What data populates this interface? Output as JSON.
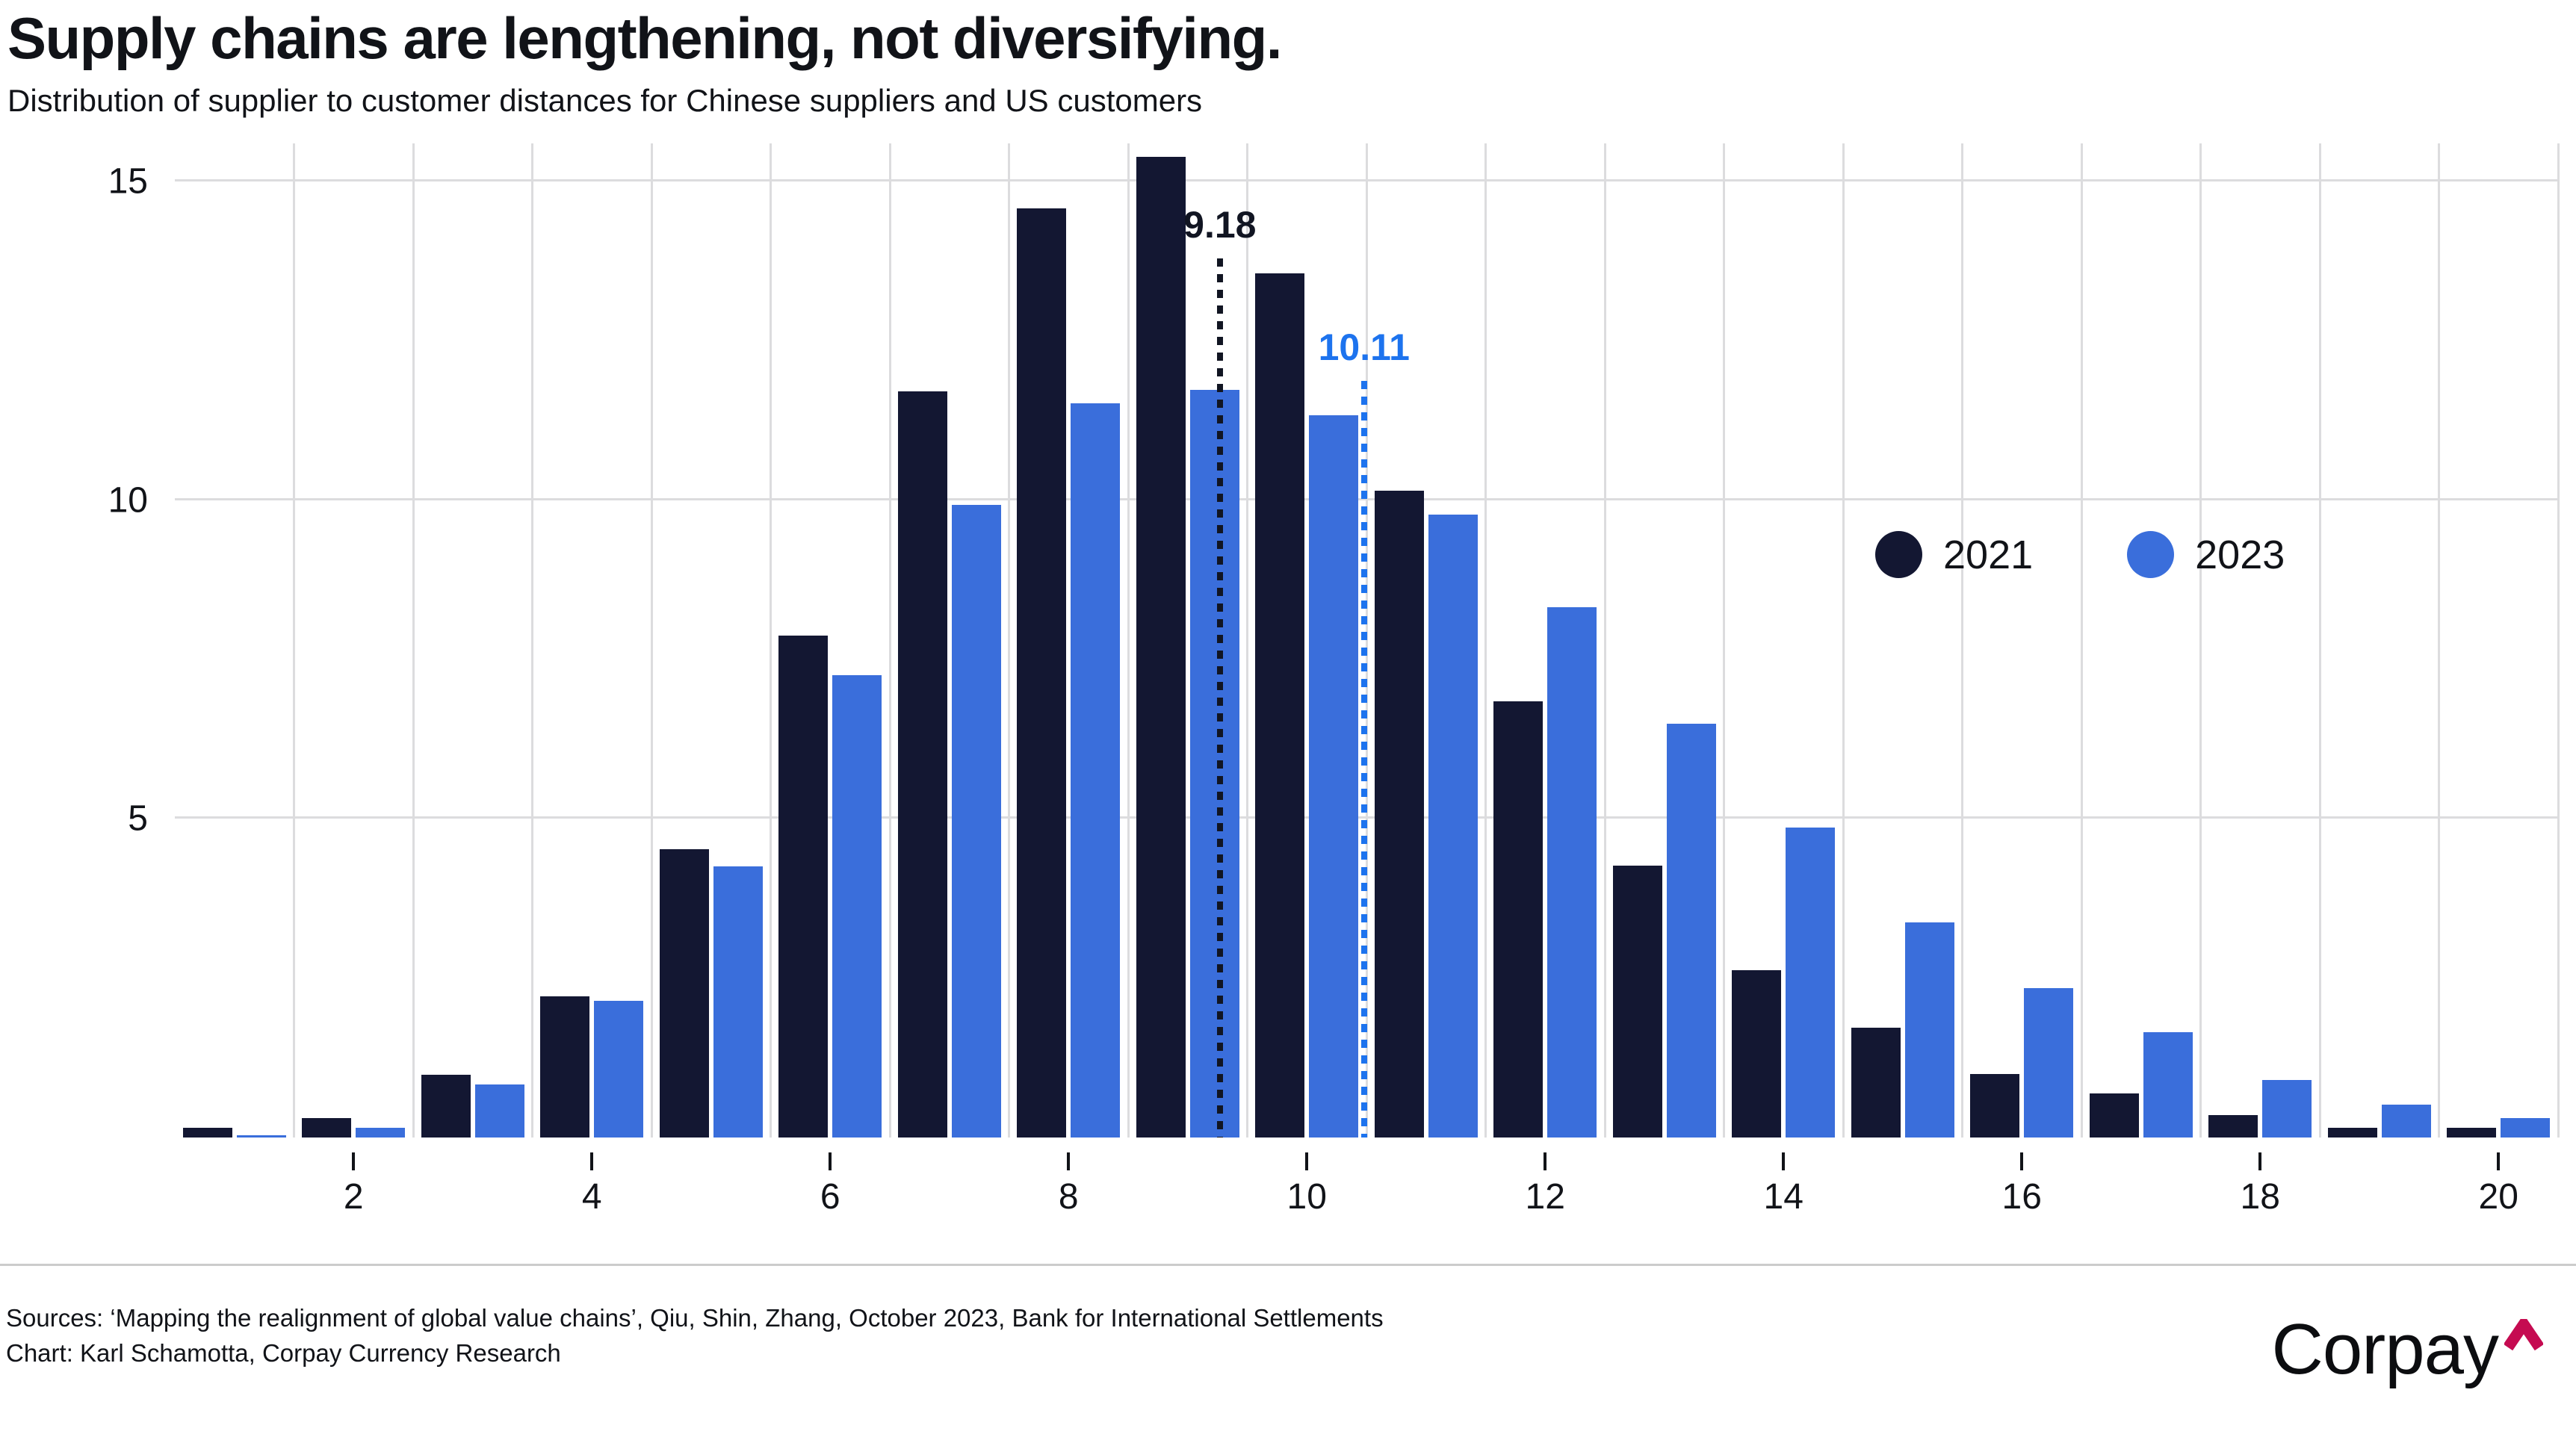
{
  "header": {
    "title": "Supply chains are lengthening, not diversifying.",
    "subtitle": "Distribution of supplier to customer distances for Chinese suppliers and US customers"
  },
  "legend": {
    "items": [
      {
        "label": "2021",
        "color": "#131732"
      },
      {
        "label": "2023",
        "color": "#3a6edb"
      }
    ]
  },
  "chart_data": {
    "type": "bar",
    "title": "Supply chains are lengthening, not diversifying.",
    "subtitle": "Distribution of supplier to customer distances for Chinese suppliers and US customers",
    "xlabel": "",
    "ylabel": "",
    "categories": [
      1,
      2,
      3,
      4,
      5,
      6,
      7,
      8,
      9,
      10,
      11,
      12,
      13,
      14,
      15,
      16,
      17,
      18,
      19,
      20
    ],
    "series": [
      {
        "name": "2021",
        "color": "#131732",
        "values": [
          0.15,
          0.31,
          0.98,
          2.22,
          4.53,
          7.88,
          11.71,
          14.58,
          15.39,
          13.56,
          10.15,
          6.85,
          4.27,
          2.62,
          1.72,
          1.0,
          0.69,
          0.35,
          0.15,
          0.15
        ]
      },
      {
        "name": "2023",
        "color": "#3a6edb",
        "values": [
          0.04,
          0.15,
          0.83,
          2.15,
          4.26,
          7.26,
          9.93,
          11.52,
          11.73,
          11.33,
          9.78,
          8.32,
          6.49,
          4.86,
          3.38,
          2.35,
          1.65,
          0.9,
          0.52,
          0.31
        ]
      }
    ],
    "x_domain": [
      0.5,
      20.5
    ],
    "y_max": 15.6,
    "x_ticks": [
      2,
      4,
      6,
      8,
      10,
      12,
      14,
      16,
      18,
      20
    ],
    "y_ticks": [
      5,
      10,
      15
    ],
    "grid": true,
    "legend_position": "center-right",
    "mean_lines": [
      {
        "label": "9.18",
        "x": 9.27,
        "top": 13.8,
        "color": "#111522"
      },
      {
        "label": "10.11",
        "x": 10.48,
        "top": 11.87,
        "color": "#1d73ee"
      }
    ]
  },
  "footer": {
    "sources_line": "Sources: ‘Mapping the realignment of global value chains’, Qiu, Shin, Zhang, October 2023, Bank for International Settlements",
    "chart_line": "Chart: Karl Schamotta, Corpay Currency Research",
    "logo_text": "Corpay"
  }
}
